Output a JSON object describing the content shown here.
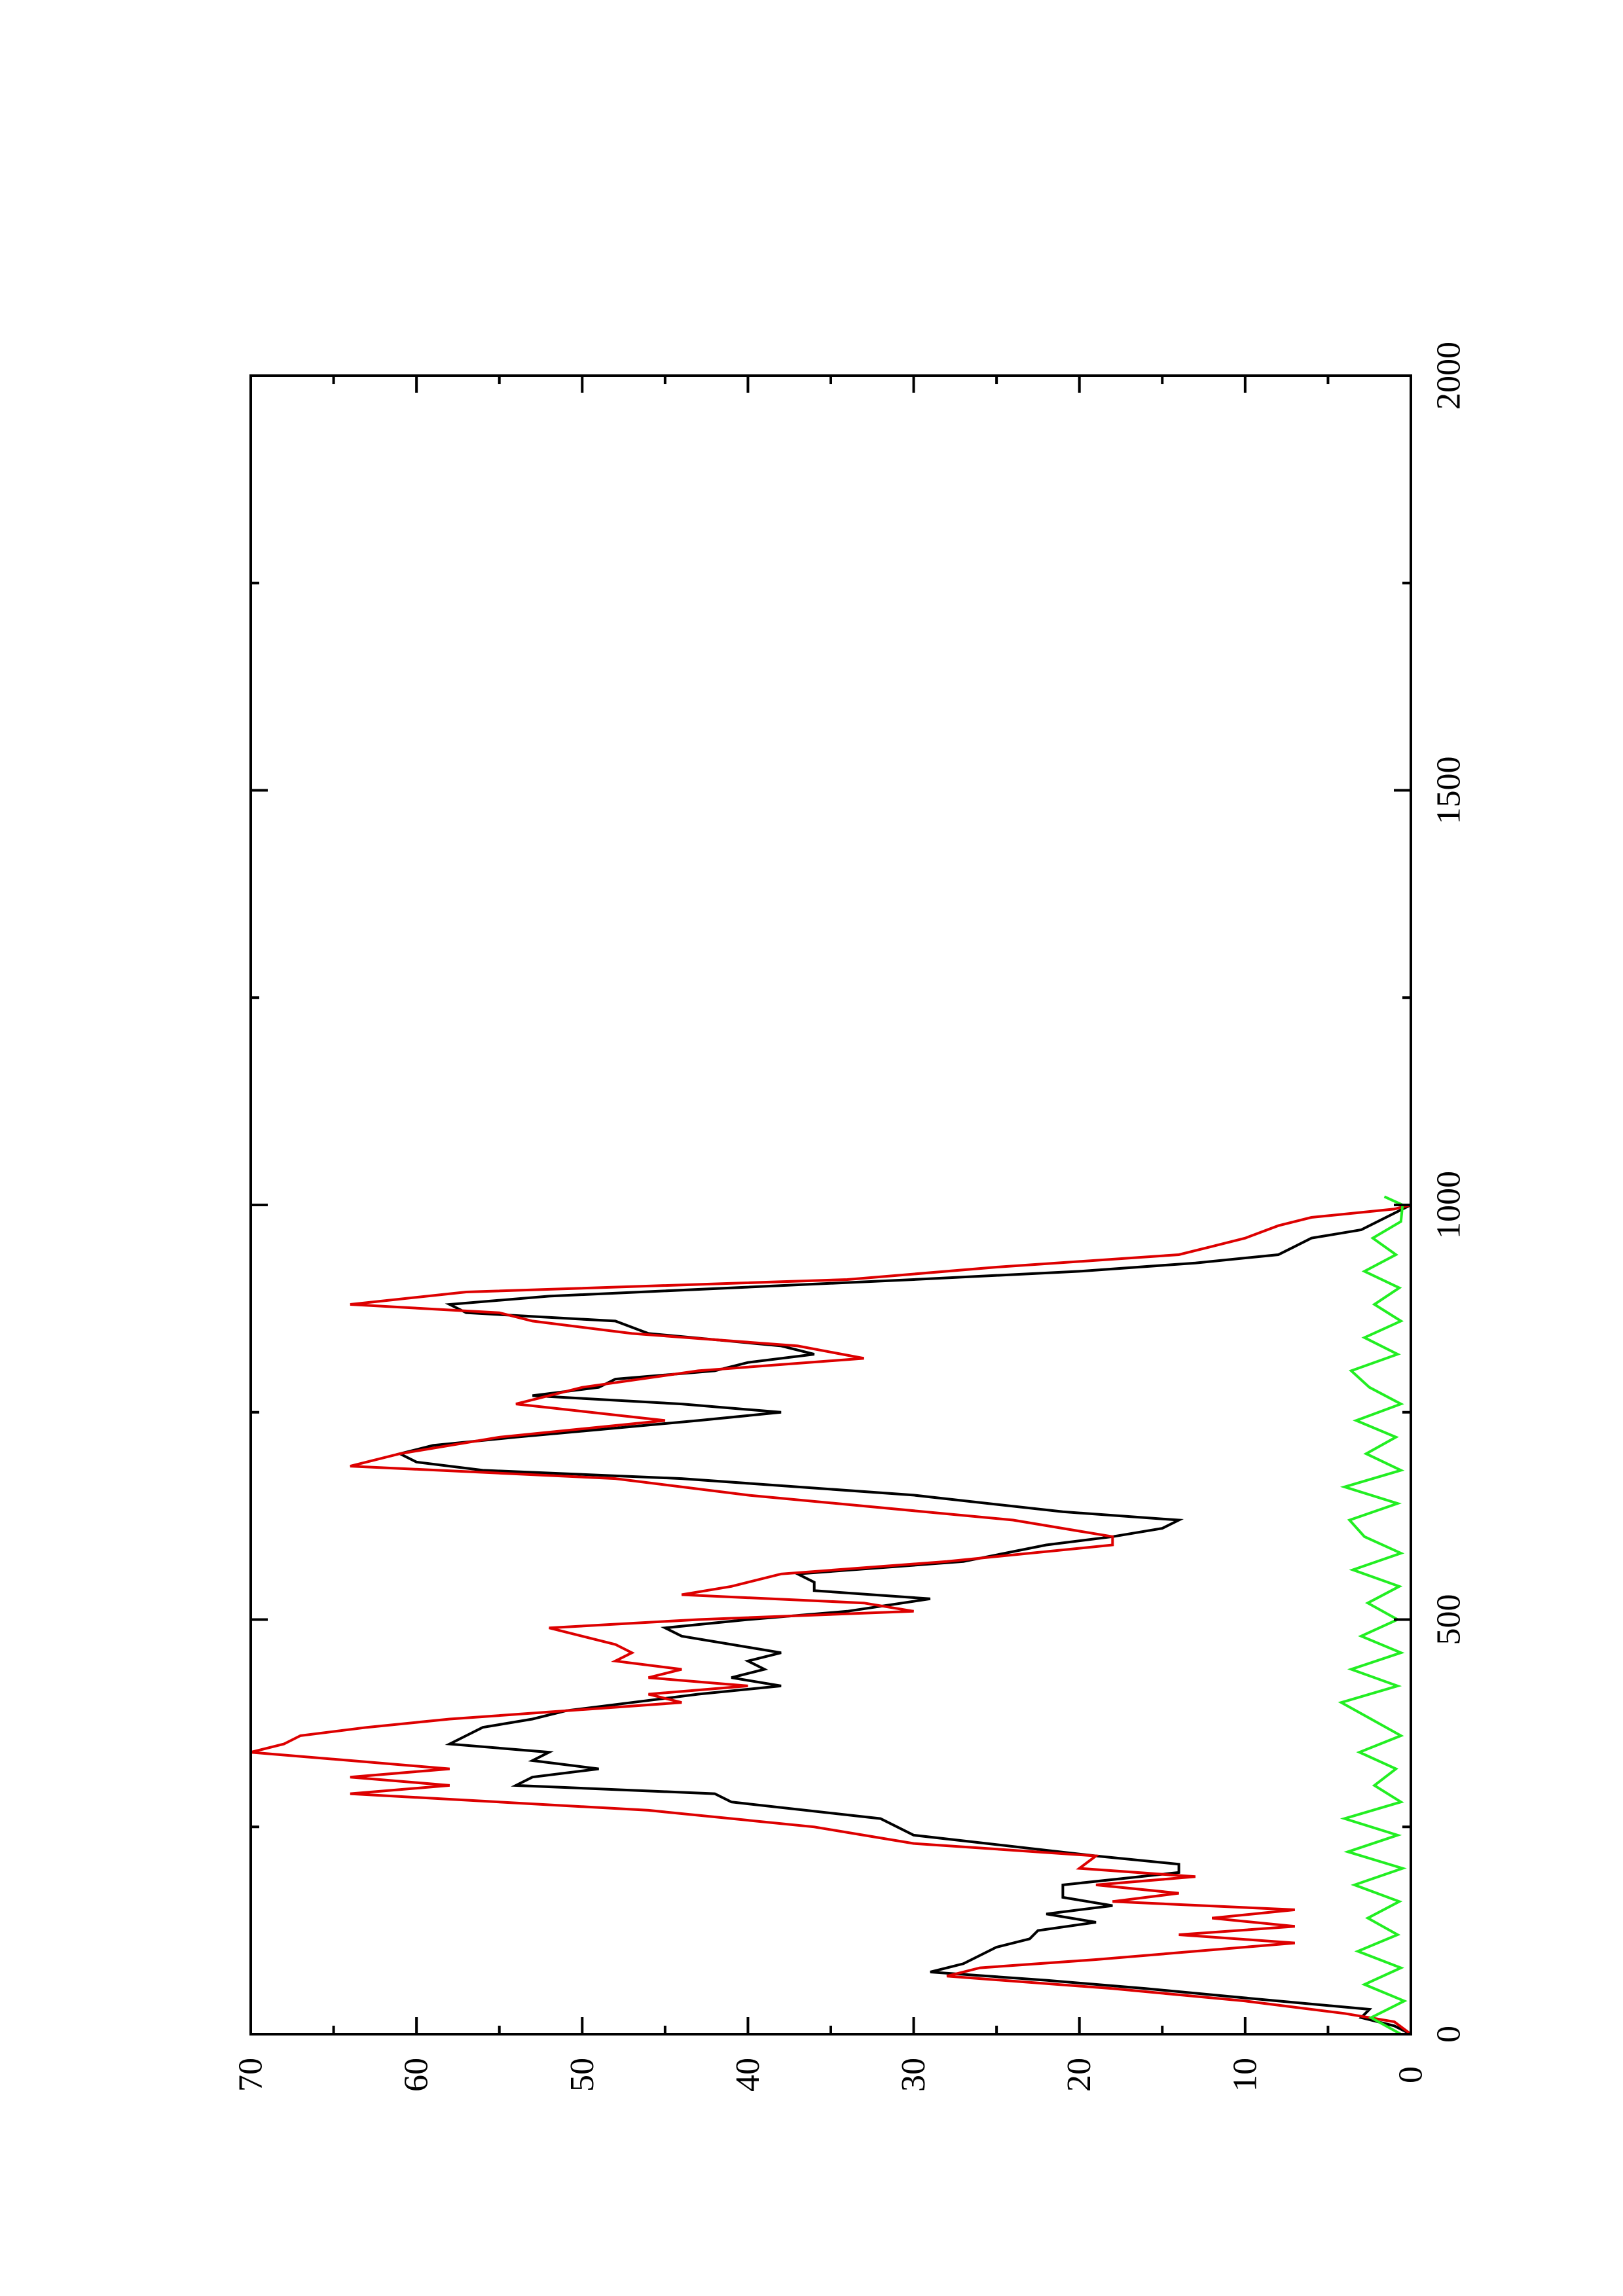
{
  "chart_data": {
    "type": "line",
    "title": "",
    "xlabel": "",
    "ylabel": "",
    "xlim": [
      0,
      2000
    ],
    "ylim": [
      0,
      70
    ],
    "grid": false,
    "orientation": "rotated-90-ccw",
    "x_ticks_major": [
      0,
      500,
      1000,
      1500,
      2000
    ],
    "x_ticks_minor": [
      250,
      750,
      1250,
      1750
    ],
    "y_ticks_major": [
      0,
      10,
      20,
      30,
      40,
      50,
      60,
      70
    ],
    "y_ticks_minor": [
      5,
      15,
      25,
      35,
      45,
      55,
      65
    ],
    "series": [
      {
        "color": "#000000",
        "points": [
          [
            0,
            0
          ],
          [
            10,
            1
          ],
          [
            20,
            3
          ],
          [
            30,
            2.5
          ],
          [
            40,
            8
          ],
          [
            55,
            16
          ],
          [
            65,
            22
          ],
          [
            75,
            29
          ],
          [
            85,
            27
          ],
          [
            95,
            26
          ],
          [
            105,
            25
          ],
          [
            115,
            23
          ],
          [
            125,
            22.5
          ],
          [
            135,
            19
          ],
          [
            145,
            22
          ],
          [
            155,
            18
          ],
          [
            165,
            21
          ],
          [
            180,
            21
          ],
          [
            195,
            14
          ],
          [
            205,
            14
          ],
          [
            215,
            19
          ],
          [
            240,
            30
          ],
          [
            260,
            32
          ],
          [
            280,
            41
          ],
          [
            290,
            42
          ],
          [
            300,
            54
          ],
          [
            310,
            53
          ],
          [
            320,
            49
          ],
          [
            330,
            53
          ],
          [
            340,
            52
          ],
          [
            350,
            58
          ],
          [
            360,
            57
          ],
          [
            370,
            56
          ],
          [
            380,
            53
          ],
          [
            390,
            51
          ],
          [
            400,
            47
          ],
          [
            410,
            43
          ],
          [
            420,
            38
          ],
          [
            430,
            41
          ],
          [
            440,
            39
          ],
          [
            450,
            40
          ],
          [
            460,
            38
          ],
          [
            470,
            41
          ],
          [
            480,
            44
          ],
          [
            490,
            45
          ],
          [
            500,
            40
          ],
          [
            510,
            34
          ],
          [
            525,
            29
          ],
          [
            535,
            36
          ],
          [
            545,
            36
          ],
          [
            555,
            37
          ],
          [
            570,
            27
          ],
          [
            590,
            22
          ],
          [
            600,
            18
          ],
          [
            610,
            15
          ],
          [
            620,
            14
          ],
          [
            630,
            21
          ],
          [
            650,
            30
          ],
          [
            670,
            44
          ],
          [
            680,
            56
          ],
          [
            690,
            60
          ],
          [
            700,
            61
          ],
          [
            710,
            59
          ],
          [
            720,
            54
          ],
          [
            740,
            43
          ],
          [
            750,
            38
          ],
          [
            760,
            44
          ],
          [
            770,
            53
          ],
          [
            780,
            49
          ],
          [
            790,
            48
          ],
          [
            800,
            42
          ],
          [
            810,
            40
          ],
          [
            820,
            36
          ],
          [
            830,
            38
          ],
          [
            845,
            46
          ],
          [
            860,
            48
          ],
          [
            870,
            57
          ],
          [
            880,
            58
          ],
          [
            890,
            52
          ],
          [
            910,
            30
          ],
          [
            920,
            20
          ],
          [
            930,
            13
          ],
          [
            940,
            8
          ],
          [
            950,
            7
          ],
          [
            960,
            6
          ],
          [
            970,
            3
          ],
          [
            980,
            2
          ],
          [
            1000,
            0
          ]
        ]
      },
      {
        "color": "#dd0000",
        "points": [
          [
            0,
            0
          ],
          [
            15,
            1
          ],
          [
            25,
            4
          ],
          [
            40,
            10
          ],
          [
            55,
            18
          ],
          [
            70,
            28
          ],
          [
            80,
            26
          ],
          [
            90,
            19
          ],
          [
            100,
            13
          ],
          [
            110,
            7
          ],
          [
            120,
            14
          ],
          [
            130,
            7
          ],
          [
            140,
            12
          ],
          [
            150,
            7
          ],
          [
            160,
            18
          ],
          [
            170,
            14
          ],
          [
            180,
            19
          ],
          [
            190,
            13
          ],
          [
            200,
            20
          ],
          [
            215,
            19
          ],
          [
            230,
            30
          ],
          [
            250,
            36
          ],
          [
            270,
            46
          ],
          [
            290,
            64
          ],
          [
            300,
            58
          ],
          [
            310,
            64
          ],
          [
            320,
            58
          ],
          [
            330,
            64
          ],
          [
            340,
            70
          ],
          [
            350,
            68
          ],
          [
            360,
            67
          ],
          [
            370,
            63
          ],
          [
            380,
            58
          ],
          [
            390,
            51
          ],
          [
            400,
            44
          ],
          [
            410,
            46
          ],
          [
            420,
            40
          ],
          [
            430,
            46
          ],
          [
            440,
            44
          ],
          [
            450,
            48
          ],
          [
            460,
            47
          ],
          [
            470,
            48
          ],
          [
            490,
            52
          ],
          [
            500,
            43
          ],
          [
            510,
            30
          ],
          [
            520,
            33
          ],
          [
            530,
            44
          ],
          [
            540,
            41
          ],
          [
            555,
            38
          ],
          [
            570,
            28
          ],
          [
            590,
            18
          ],
          [
            600,
            18
          ],
          [
            620,
            24
          ],
          [
            650,
            40
          ],
          [
            670,
            48
          ],
          [
            685,
            64
          ],
          [
            700,
            61
          ],
          [
            720,
            55
          ],
          [
            740,
            45
          ],
          [
            760,
            54
          ],
          [
            780,
            50
          ],
          [
            800,
            43
          ],
          [
            815,
            33
          ],
          [
            830,
            37
          ],
          [
            845,
            47
          ],
          [
            860,
            53
          ],
          [
            870,
            55
          ],
          [
            880,
            64
          ],
          [
            895,
            57
          ],
          [
            910,
            34
          ],
          [
            925,
            25
          ],
          [
            940,
            14
          ],
          [
            950,
            12
          ],
          [
            960,
            10
          ],
          [
            975,
            8
          ],
          [
            985,
            6
          ],
          [
            995,
            1
          ],
          [
            1000,
            0
          ]
        ]
      },
      {
        "color": "#22ee22",
        "points": [
          [
            0,
            0.6
          ],
          [
            20,
            2.4
          ],
          [
            40,
            0.4
          ],
          [
            60,
            2.8
          ],
          [
            80,
            0.6
          ],
          [
            100,
            3.2
          ],
          [
            120,
            0.8
          ],
          [
            140,
            2.6
          ],
          [
            160,
            0.7
          ],
          [
            180,
            3.4
          ],
          [
            200,
            0.5
          ],
          [
            220,
            3.8
          ],
          [
            240,
            0.8
          ],
          [
            260,
            4.0
          ],
          [
            280,
            0.6
          ],
          [
            300,
            2.2
          ],
          [
            320,
            0.9
          ],
          [
            340,
            3.1
          ],
          [
            360,
            0.6
          ],
          [
            380,
            2.4
          ],
          [
            400,
            4.2
          ],
          [
            420,
            0.8
          ],
          [
            440,
            3.6
          ],
          [
            460,
            0.6
          ],
          [
            480,
            3.0
          ],
          [
            500,
            0.8
          ],
          [
            520,
            2.6
          ],
          [
            540,
            0.7
          ],
          [
            560,
            3.5
          ],
          [
            580,
            0.6
          ],
          [
            600,
            2.8
          ],
          [
            620,
            3.7
          ],
          [
            640,
            0.8
          ],
          [
            660,
            4.0
          ],
          [
            680,
            0.6
          ],
          [
            700,
            2.7
          ],
          [
            720,
            0.9
          ],
          [
            740,
            3.3
          ],
          [
            760,
            0.6
          ],
          [
            780,
            2.5
          ],
          [
            800,
            3.6
          ],
          [
            820,
            0.8
          ],
          [
            840,
            2.8
          ],
          [
            860,
            0.6
          ],
          [
            880,
            2.2
          ],
          [
            900,
            0.7
          ],
          [
            920,
            2.8
          ],
          [
            940,
            0.9
          ],
          [
            960,
            2.3
          ],
          [
            980,
            0.6
          ],
          [
            1000,
            0.5
          ],
          [
            1010,
            1.6
          ]
        ]
      }
    ]
  }
}
